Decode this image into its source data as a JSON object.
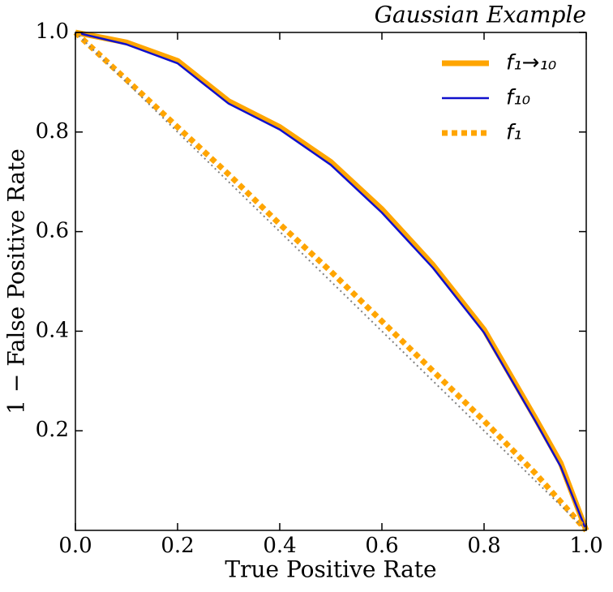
{
  "chart_data": {
    "type": "line",
    "title": "Gaussian Example",
    "xlabel": "True Positive Rate",
    "ylabel": "1 − False Positive Rate",
    "xlim": [
      0,
      1
    ],
    "ylim": [
      0,
      1
    ],
    "xticks": [
      {
        "value": 0,
        "label": "0.0"
      },
      0.2,
      0.4,
      0.6,
      0.8,
      {
        "value": 1,
        "label": "1.0"
      }
    ],
    "yticks": [
      0.2,
      0.4,
      0.6,
      0.8,
      {
        "value": 1,
        "label": "1.0"
      }
    ],
    "legend": "upper right",
    "series": [
      {
        "name": "f₁→₁₀",
        "color": "#ffa500",
        "linestyle": "solid",
        "linewidth": 7,
        "x": [
          0,
          0.1,
          0.2,
          0.3,
          0.4,
          0.5,
          0.6,
          0.7,
          0.8,
          0.9,
          0.95,
          1
        ],
        "values": [
          1,
          0.98,
          0.943,
          0.862,
          0.81,
          0.74,
          0.645,
          0.533,
          0.403,
          0.226,
          0.135,
          0
        ]
      },
      {
        "name": "f₁₀",
        "color": "#1010cc",
        "linestyle": "solid",
        "linewidth": 2.5,
        "x": [
          0,
          0.1,
          0.2,
          0.3,
          0.4,
          0.5,
          0.6,
          0.7,
          0.8,
          0.9,
          0.95,
          1
        ],
        "values": [
          1,
          0.976,
          0.938,
          0.857,
          0.805,
          0.734,
          0.638,
          0.527,
          0.397,
          0.22,
          0.128,
          0
        ]
      },
      {
        "name": "f₁",
        "color": "#ffa500",
        "linestyle": "dotted",
        "linewidth": 7,
        "x": [
          0,
          0.1,
          0.2,
          0.3,
          0.4,
          0.5,
          0.6,
          0.7,
          0.8,
          0.9,
          1
        ],
        "values": [
          1,
          0.905,
          0.81,
          0.715,
          0.615,
          0.52,
          0.42,
          0.32,
          0.22,
          0.115,
          0
        ]
      },
      {
        "color": "#808080",
        "linestyle": "dotted",
        "linewidth": 2,
        "x": [
          0,
          1
        ],
        "values": [
          1,
          0
        ]
      }
    ]
  }
}
